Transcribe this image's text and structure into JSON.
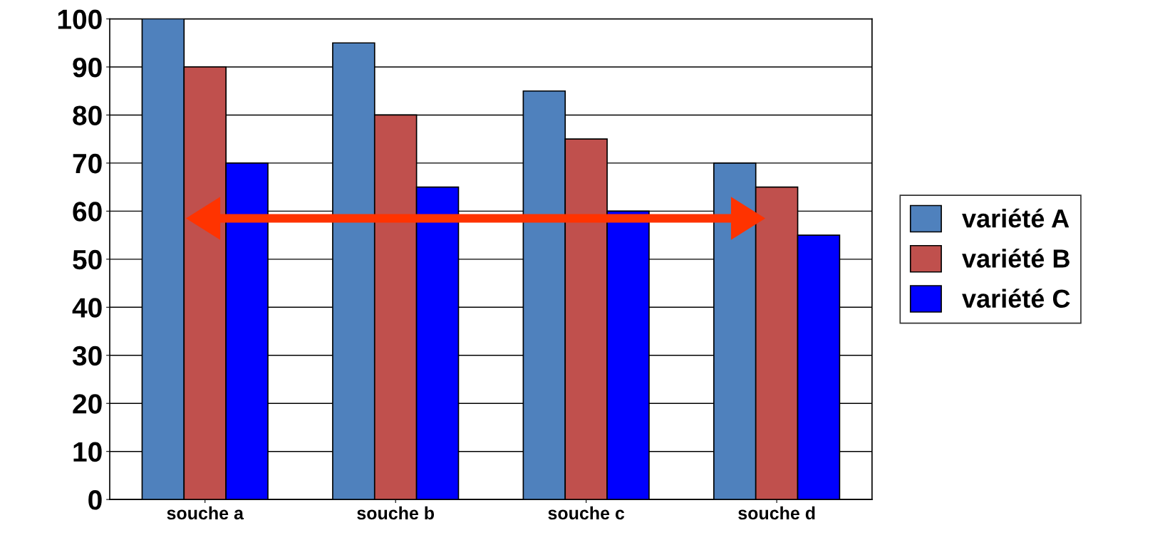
{
  "chart_data": {
    "type": "bar",
    "categories": [
      "souche a",
      "souche b",
      "souche c",
      "souche d"
    ],
    "series": [
      {
        "name": "variété A",
        "color": "#4f81bd",
        "values": [
          100,
          95,
          85,
          70
        ]
      },
      {
        "name": "variété B",
        "color": "#c0504d",
        "values": [
          90,
          80,
          75,
          65
        ]
      },
      {
        "name": "variété C",
        "color": "#0000ff",
        "values": [
          70,
          65,
          60,
          55
        ]
      }
    ],
    "ylim": [
      0,
      100
    ],
    "yticks": [
      0,
      10,
      20,
      30,
      40,
      50,
      60,
      70,
      80,
      90,
      100
    ],
    "grid": "y",
    "legend": "right"
  }
}
